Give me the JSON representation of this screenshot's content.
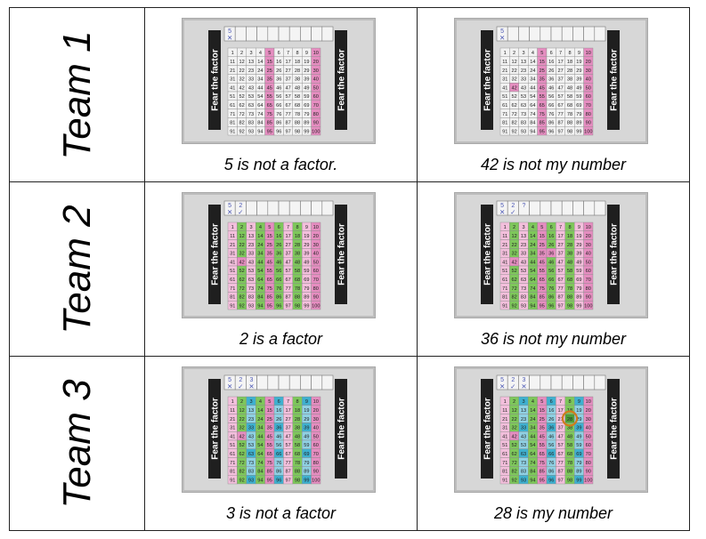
{
  "colors": {
    "pink": "#e58dc0",
    "pink_light": "#f3bfdc",
    "green": "#7ec75b",
    "green_dark": "#4e9e38",
    "blue": "#3fb0cf",
    "strip": "#1f1f1f",
    "mark": "#4b57b5"
  },
  "logo_text": {
    "word_left": "Fear",
    "word_right": "the factor"
  },
  "teams": [
    {
      "label": "Team 1",
      "panels": [
        {
          "caption": "5 is not a factor.",
          "checks": [
            "5",
            "✕"
          ],
          "pink_cols": [
            5,
            10
          ],
          "green_cols": [],
          "blue_cols": [],
          "pink_cells": [],
          "green_cells": [],
          "circle": null
        },
        {
          "caption": "42 is not my number",
          "checks": [
            "5",
            "✕"
          ],
          "pink_cols": [
            5,
            10
          ],
          "green_cols": [],
          "blue_cols": [],
          "pink_cells": [
            42
          ],
          "green_cells": [],
          "circle": null
        }
      ]
    },
    {
      "label": "Team 2",
      "panels": [
        {
          "caption": "2 is a factor",
          "checks": [
            "5",
            "✕",
            "2",
            "✓"
          ],
          "pink_cols": [
            5,
            10,
            1,
            3,
            7,
            9
          ],
          "green_cols": [
            2,
            4,
            6,
            8
          ],
          "blue_cols": [],
          "pink_cells": [
            42
          ],
          "green_cells": [],
          "circle": null
        },
        {
          "caption": "36 is not my number",
          "checks": [
            "5",
            "✕",
            "2",
            "✓",
            "?",
            ""
          ],
          "pink_cols": [
            5,
            10,
            1,
            3,
            7,
            9
          ],
          "green_cols": [
            2,
            4,
            6,
            8
          ],
          "blue_cols": [],
          "pink_cells": [
            42,
            36
          ],
          "green_cells": [],
          "circle": null
        }
      ]
    },
    {
      "label": "Team 3",
      "panels": [
        {
          "caption": "3 is not a factor",
          "checks": [
            "5",
            "✕",
            "2",
            "✓",
            "3",
            "✕"
          ],
          "pink_cols": [
            5,
            10,
            1,
            7
          ],
          "green_cols": [
            2,
            4,
            8
          ],
          "blue_cols": [
            3,
            6,
            9
          ],
          "pink_cells": [
            42
          ],
          "green_cells": [],
          "circle": null
        },
        {
          "caption": "28 is my number",
          "checks": [
            "5",
            "✕",
            "2",
            "✓",
            "3",
            "✕"
          ],
          "pink_cols": [
            5,
            10,
            1,
            7
          ],
          "green_cols": [
            2,
            4,
            8
          ],
          "blue_cols": [
            3,
            6,
            9
          ],
          "pink_cells": [
            42
          ],
          "green_cells": [
            28
          ],
          "circle": 28
        }
      ]
    }
  ]
}
